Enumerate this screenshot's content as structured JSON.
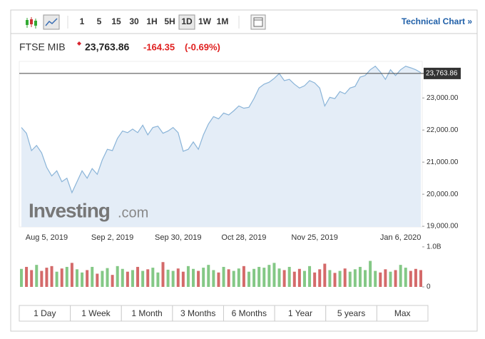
{
  "toolbar": {
    "intervals": [
      "1",
      "5",
      "15",
      "30",
      "1H",
      "5H",
      "1D",
      "1W",
      "1M"
    ],
    "selected": "1D",
    "link": "Technical Chart »"
  },
  "quote": {
    "name": "FTSE MIB",
    "price": "23,763.86",
    "change": "-164.35",
    "change_pct": "(-0.69%)"
  },
  "watermark": {
    "brand": "Investing",
    "suffix": ".com"
  },
  "ranges": [
    "1 Day",
    "1 Week",
    "1 Month",
    "3 Months",
    "6 Months",
    "1 Year",
    "5 years",
    "Max"
  ],
  "chart_data": [
    {
      "type": "area",
      "color": "#8ab4d8",
      "fill": "#e4edf7",
      "categories": [
        null,
        null,
        null,
        null,
        null,
        "Aug 5, 2019",
        null,
        null,
        null,
        null,
        null,
        null,
        null,
        null,
        null,
        null,
        null,
        null,
        "Sep 2, 2019",
        null,
        null,
        null,
        null,
        null,
        null,
        null,
        null,
        null,
        null,
        null,
        null,
        "Sep 30, 2019",
        null,
        null,
        null,
        null,
        null,
        null,
        null,
        null,
        null,
        null,
        null,
        null,
        "Oct 28, 2019",
        null,
        null,
        null,
        null,
        null,
        null,
        null,
        null,
        null,
        null,
        null,
        null,
        null,
        "Nov 25, 2019",
        null,
        null,
        null,
        null,
        null,
        null,
        null,
        null,
        null,
        null,
        null,
        null,
        null,
        null,
        null,
        null,
        "Jan 6, 2020",
        null,
        null,
        null,
        null
      ],
      "values": [
        22079,
        21900,
        21360,
        21520,
        21290,
        20840,
        20570,
        20730,
        20390,
        20500,
        20050,
        20390,
        20730,
        20500,
        20800,
        20620,
        21070,
        21400,
        21360,
        21740,
        21970,
        21920,
        22030,
        21920,
        22150,
        21850,
        22080,
        22120,
        21900,
        21970,
        22080,
        21920,
        21340,
        21400,
        21630,
        21400,
        21850,
        22190,
        22420,
        22350,
        22530,
        22470,
        22600,
        22750,
        22680,
        22710,
        22980,
        23310,
        23430,
        23490,
        23610,
        23760,
        23540,
        23580,
        23430,
        23310,
        23380,
        23540,
        23470,
        23310,
        22750,
        23020,
        22980,
        23200,
        23130,
        23310,
        23360,
        23650,
        23700,
        23880,
        23990,
        23810,
        23580,
        23880,
        23700,
        23880,
        23990,
        23940,
        23880,
        23790
      ],
      "last": {
        "value": 23763.86,
        "label": "23,763.86"
      },
      "ylim": [
        18980,
        24140
      ],
      "yticks": [
        {
          "value": 19000,
          "label": "19,000.00"
        },
        {
          "value": 20000,
          "label": "20,000.00"
        },
        {
          "value": 21000,
          "label": "21,000.00"
        },
        {
          "value": 22000,
          "label": "22,000.00"
        },
        {
          "value": 23000,
          "label": "23,000.00"
        }
      ]
    },
    {
      "type": "bar",
      "up_color": "#84c886",
      "down_color": "#d46a6a",
      "values": [
        0.45,
        0.5,
        0.42,
        0.55,
        0.4,
        0.48,
        0.52,
        0.38,
        0.46,
        0.5,
        0.6,
        0.44,
        0.36,
        0.42,
        0.5,
        0.33,
        0.4,
        0.47,
        0.3,
        0.52,
        0.45,
        0.38,
        0.42,
        0.5,
        0.4,
        0.44,
        0.48,
        0.36,
        0.62,
        0.43,
        0.4,
        0.46,
        0.38,
        0.52,
        0.45,
        0.4,
        0.48,
        0.55,
        0.42,
        0.36,
        0.5,
        0.44,
        0.4,
        0.46,
        0.52,
        0.38,
        0.45,
        0.5,
        0.48,
        0.55,
        0.6,
        0.46,
        0.42,
        0.5,
        0.38,
        0.45,
        0.4,
        0.52,
        0.36,
        0.44,
        0.58,
        0.42,
        0.35,
        0.4,
        0.46,
        0.38,
        0.44,
        0.5,
        0.42,
        0.65,
        0.4,
        0.36,
        0.44,
        0.38,
        0.42,
        0.55,
        0.48,
        0.4,
        0.45,
        0.42
      ],
      "ylim": [
        0,
        1.07
      ],
      "yticks": [
        0,
        {
          "value": 1,
          "label": "1.0B"
        }
      ]
    }
  ]
}
